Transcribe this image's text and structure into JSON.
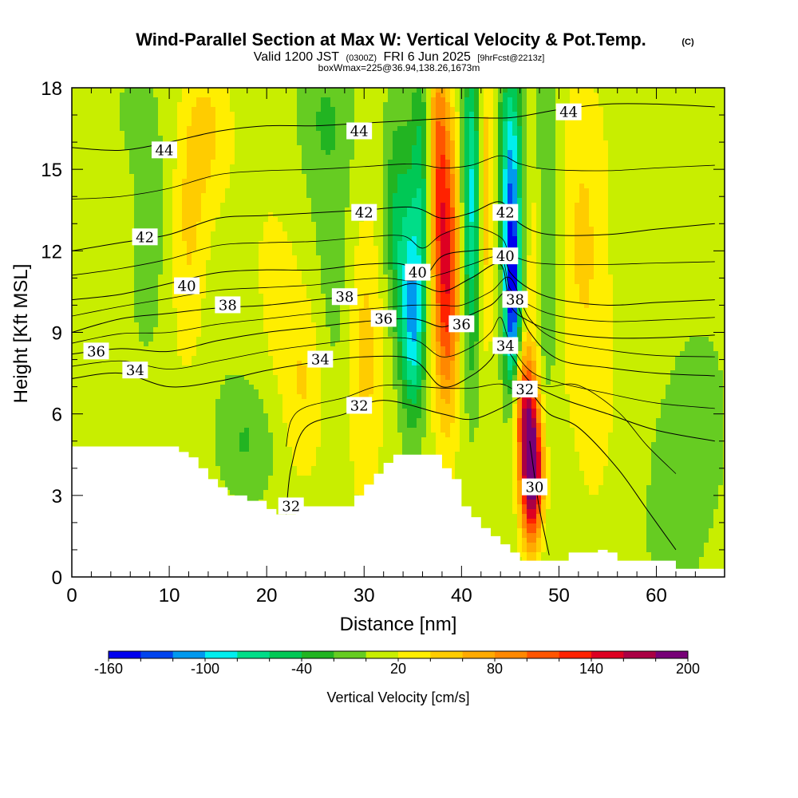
{
  "title": {
    "main": "Wind-Parallel Section at Max W: Vertical Velocity & Pot.Temp.",
    "copyright": "(C)",
    "valid_prefix": "Valid 1200 JST",
    "valid_zulu": "(0300Z)",
    "valid_date": "FRI 6 Jun 2025",
    "forecast": "[9hrFcst@2213z]",
    "boxwmax": "boxWmax=225@36.94,138.26,1673m"
  },
  "chart_data": {
    "type": "heatmap",
    "xlabel": "Distance [nm]",
    "ylabel": "Height [Kft MSL]",
    "xlim": [
      0,
      67
    ],
    "ylim": [
      0,
      18
    ],
    "x_ticks": [
      "0",
      "10",
      "20",
      "30",
      "40",
      "50",
      "60"
    ],
    "x_tick_values": [
      0,
      10,
      20,
      30,
      40,
      50,
      60
    ],
    "y_ticks": [
      "0",
      "3",
      "6",
      "9",
      "12",
      "15",
      "18"
    ],
    "y_tick_values": [
      0,
      3,
      6,
      9,
      12,
      15,
      18
    ],
    "colorbar": {
      "title": "Vertical Velocity [cm/s]",
      "labels": [
        "-160",
        "-100",
        "-40",
        "20",
        "80",
        "140",
        "200"
      ],
      "label_values": [
        -160,
        -100,
        -40,
        20,
        80,
        140,
        200
      ],
      "levels": [
        -160,
        -140,
        -120,
        -100,
        -80,
        -60,
        -40,
        -20,
        0,
        20,
        40,
        60,
        80,
        100,
        120,
        140,
        160,
        180,
        200
      ],
      "colors": [
        "#0000ee",
        "#0044ee",
        "#0099ee",
        "#00eeee",
        "#00dd88",
        "#00c855",
        "#22b422",
        "#66cc22",
        "#c8ee00",
        "#ffee00",
        "#ffcc00",
        "#ffaa00",
        "#ff8800",
        "#ff5500",
        "#ff2200",
        "#dd0022",
        "#aa0044",
        "#770077"
      ]
    },
    "terrain": [
      [
        0,
        4.8
      ],
      [
        2,
        4.8
      ],
      [
        5,
        4.8
      ],
      [
        8,
        4.8
      ],
      [
        10,
        4.8
      ],
      [
        11,
        4.6
      ],
      [
        12,
        4.4
      ],
      [
        13,
        4.0
      ],
      [
        14,
        3.6
      ],
      [
        15,
        3.3
      ],
      [
        16,
        3.0
      ],
      [
        18,
        2.8
      ],
      [
        20,
        2.5
      ],
      [
        21,
        2.3
      ],
      [
        22,
        2.3
      ],
      [
        23,
        2.6
      ],
      [
        25,
        2.6
      ],
      [
        27,
        2.6
      ],
      [
        28,
        2.6
      ],
      [
        29,
        3.0
      ],
      [
        30,
        3.4
      ],
      [
        31,
        3.8
      ],
      [
        32,
        4.2
      ],
      [
        33,
        4.5
      ],
      [
        35,
        4.5
      ],
      [
        37,
        4.5
      ],
      [
        38,
        4.0
      ],
      [
        39,
        3.6
      ],
      [
        40,
        2.6
      ],
      [
        41,
        2.2
      ],
      [
        42,
        1.8
      ],
      [
        43,
        1.5
      ],
      [
        44,
        1.2
      ],
      [
        45,
        0.9
      ],
      [
        46,
        0.6
      ],
      [
        48,
        0.6
      ],
      [
        50,
        0.6
      ],
      [
        51,
        0.9
      ],
      [
        53,
        0.9
      ],
      [
        54,
        1.0
      ],
      [
        55,
        0.9
      ],
      [
        56,
        0.6
      ],
      [
        58,
        0.6
      ],
      [
        61,
        0.6
      ],
      [
        62,
        0.3
      ],
      [
        64,
        0.3
      ],
      [
        67,
        0.3
      ]
    ],
    "w_features": [
      {
        "x": 12,
        "y": 13,
        "sx": 1.3,
        "sy": 3.5,
        "amp": 35
      },
      {
        "x": 14,
        "y": 16.5,
        "sx": 1.5,
        "sy": 2.0,
        "amp": 30
      },
      {
        "x": 8,
        "y": 11,
        "sx": 1.5,
        "sy": 3.0,
        "amp": -15
      },
      {
        "x": 30,
        "y": 8.5,
        "sx": 1.4,
        "sy": 3.5,
        "amp": 45
      },
      {
        "x": 24,
        "y": 7,
        "sx": 1.5,
        "sy": 2.5,
        "amp": 30
      },
      {
        "x": 21,
        "y": 12,
        "sx": 2.5,
        "sy": 4.0,
        "amp": 15
      },
      {
        "x": 27,
        "y": 12,
        "sx": 2.0,
        "sy": 4.0,
        "amp": -20
      },
      {
        "x": 26,
        "y": 17,
        "sx": 2.0,
        "sy": 2.0,
        "amp": -25
      },
      {
        "x": 35,
        "y": 9.5,
        "sx": 0.9,
        "sy": 2.5,
        "amp": -110
      },
      {
        "x": 36,
        "y": 15,
        "sx": 0.8,
        "sy": 3.0,
        "amp": -60
      },
      {
        "x": 33.5,
        "y": 13,
        "sx": 1.0,
        "sy": 3.0,
        "amp": -50
      },
      {
        "x": 38.5,
        "y": 11,
        "sx": 1.0,
        "sy": 3.5,
        "amp": 130
      },
      {
        "x": 37.5,
        "y": 16,
        "sx": 0.8,
        "sy": 3.0,
        "amp": 80
      },
      {
        "x": 41,
        "y": 14,
        "sx": 0.7,
        "sy": 4.0,
        "amp": -100
      },
      {
        "x": 42.5,
        "y": 14,
        "sx": 0.6,
        "sy": 4.0,
        "amp": 50
      },
      {
        "x": 45.2,
        "y": 10.5,
        "sx": 0.6,
        "sy": 2.5,
        "amp": -165
      },
      {
        "x": 45,
        "y": 15.5,
        "sx": 0.8,
        "sy": 2.5,
        "amp": -90
      },
      {
        "x": 47.2,
        "y": 3.8,
        "sx": 0.8,
        "sy": 1.8,
        "amp": 210
      },
      {
        "x": 46.5,
        "y": 6.5,
        "sx": 0.8,
        "sy": 1.5,
        "amp": 100
      },
      {
        "x": 48.5,
        "y": 12,
        "sx": 1.0,
        "sy": 5.0,
        "amp": -35
      },
      {
        "x": 47.5,
        "y": 12,
        "sx": 0.6,
        "sy": 3.0,
        "amp": 40
      },
      {
        "x": 52,
        "y": 13,
        "sx": 1.5,
        "sy": 4.0,
        "amp": 20
      },
      {
        "x": 54,
        "y": 9,
        "sx": 2.5,
        "sy": 4.5,
        "amp": 25
      },
      {
        "x": 57,
        "y": 13,
        "sx": 1.5,
        "sy": 4.5,
        "amp": -20
      },
      {
        "x": 63,
        "y": 4,
        "sx": 2.5,
        "sy": 3.0,
        "amp": -25
      },
      {
        "x": 60,
        "y": 16,
        "sx": 3.5,
        "sy": 2.5,
        "amp": 15
      },
      {
        "x": 5,
        "y": 17,
        "sx": 3.0,
        "sy": 2.0,
        "amp": -10
      },
      {
        "x": 18,
        "y": 5,
        "sx": 2.0,
        "sy": 1.5,
        "amp": -30
      }
    ],
    "theta_contours": [
      {
        "label": "30",
        "points": [
          [
            49,
            0.8
          ],
          [
            48,
            2.5
          ],
          [
            47.5,
            3.7
          ],
          [
            47,
            5
          ]
        ]
      },
      {
        "label": "32",
        "points": [
          [
            22,
            2.3
          ],
          [
            22.5,
            4
          ],
          [
            24,
            5.5
          ],
          [
            28,
            6.0
          ],
          [
            32,
            6.5
          ],
          [
            38,
            6.0
          ],
          [
            41,
            5.8
          ],
          [
            44,
            6.2
          ],
          [
            46,
            6.6
          ],
          [
            47,
            6.8
          ],
          [
            49,
            6.0
          ],
          [
            52,
            5.5
          ],
          [
            56,
            4.0
          ],
          [
            59,
            2.5
          ],
          [
            62,
            1.0
          ]
        ]
      },
      {
        "label": "34",
        "points": [
          [
            0,
            7.3
          ],
          [
            5,
            7.5
          ],
          [
            10,
            7.0
          ],
          [
            15,
            7.2
          ],
          [
            20,
            7.6
          ],
          [
            25,
            7.9
          ],
          [
            30,
            8.1
          ],
          [
            35,
            8.0
          ],
          [
            38,
            7.0
          ],
          [
            41,
            7.4
          ],
          [
            43,
            8.0
          ],
          [
            44,
            8.6
          ],
          [
            45,
            8.2
          ],
          [
            47,
            7.2
          ],
          [
            50,
            6.6
          ],
          [
            55,
            6.0
          ],
          [
            60,
            5.4
          ],
          [
            66,
            5.0
          ]
        ]
      },
      {
        "label": "36",
        "points": [
          [
            0,
            8.2
          ],
          [
            5,
            8.4
          ],
          [
            10,
            8.3
          ],
          [
            15,
            8.7
          ],
          [
            20,
            9.0
          ],
          [
            25,
            9.2
          ],
          [
            30,
            9.4
          ],
          [
            35,
            9.5
          ],
          [
            38,
            9.2
          ],
          [
            40,
            9.5
          ],
          [
            43,
            10.0
          ],
          [
            45,
            10.5
          ],
          [
            47,
            9.0
          ],
          [
            50,
            8.0
          ],
          [
            55,
            7.7
          ],
          [
            60,
            7.5
          ],
          [
            66,
            7.4
          ]
        ]
      },
      {
        "label": "38",
        "points": [
          [
            0,
            9.0
          ],
          [
            5,
            9.5
          ],
          [
            10,
            9.7
          ],
          [
            15,
            9.9
          ],
          [
            20,
            10.0
          ],
          [
            25,
            10.2
          ],
          [
            28,
            10.3
          ],
          [
            32,
            10.5
          ],
          [
            35,
            10.8
          ],
          [
            38,
            10.5
          ],
          [
            41,
            11.0
          ],
          [
            44,
            11.5
          ],
          [
            45,
            10.0
          ],
          [
            47,
            9.4
          ],
          [
            50,
            9.0
          ],
          [
            55,
            8.8
          ],
          [
            60,
            8.8
          ],
          [
            66,
            8.9
          ]
        ]
      },
      {
        "label": "40",
        "points": [
          [
            0,
            10.2
          ],
          [
            5,
            10.4
          ],
          [
            10,
            10.8
          ],
          [
            15,
            11.2
          ],
          [
            20,
            11.3
          ],
          [
            25,
            11.3
          ],
          [
            30,
            11.5
          ],
          [
            34,
            11.5
          ],
          [
            36,
            11.0
          ],
          [
            38,
            11.8
          ],
          [
            41,
            12.0
          ],
          [
            44,
            12.0
          ],
          [
            45,
            11.2
          ],
          [
            47,
            10.6
          ],
          [
            50,
            10.2
          ],
          [
            55,
            10.0
          ],
          [
            60,
            10.1
          ],
          [
            66,
            10.2
          ]
        ]
      },
      {
        "label": "42",
        "points": [
          [
            0,
            12.0
          ],
          [
            5,
            12.3
          ],
          [
            10,
            12.6
          ],
          [
            15,
            13.2
          ],
          [
            20,
            13.3
          ],
          [
            25,
            13.4
          ],
          [
            30,
            13.5
          ],
          [
            35,
            13.6
          ],
          [
            38,
            13.2
          ],
          [
            41,
            13.4
          ],
          [
            44,
            13.8
          ],
          [
            46,
            13.0
          ],
          [
            49,
            12.6
          ],
          [
            55,
            12.6
          ],
          [
            60,
            12.8
          ],
          [
            66,
            13.0
          ]
        ]
      },
      {
        "label": "44",
        "points": [
          [
            0,
            15.8
          ],
          [
            5,
            15.7
          ],
          [
            10,
            16.0
          ],
          [
            15,
            16.4
          ],
          [
            20,
            16.6
          ],
          [
            25,
            16.6
          ],
          [
            30,
            16.7
          ],
          [
            35,
            16.8
          ],
          [
            40,
            16.9
          ],
          [
            45,
            16.9
          ],
          [
            50,
            17.2
          ],
          [
            55,
            17.4
          ],
          [
            60,
            17.4
          ],
          [
            66,
            17.3
          ]
        ]
      }
    ],
    "theta_labels": [
      {
        "text": "44",
        "x": 9.5,
        "y": 15.7
      },
      {
        "text": "44",
        "x": 29.5,
        "y": 16.4
      },
      {
        "text": "44",
        "x": 51,
        "y": 17.1
      },
      {
        "text": "42",
        "x": 7.5,
        "y": 12.5
      },
      {
        "text": "42",
        "x": 30,
        "y": 13.4
      },
      {
        "text": "42",
        "x": 44.5,
        "y": 13.4
      },
      {
        "text": "40",
        "x": 11.8,
        "y": 10.7
      },
      {
        "text": "40",
        "x": 35.5,
        "y": 11.2
      },
      {
        "text": "40",
        "x": 44.5,
        "y": 11.8
      },
      {
        "text": "38",
        "x": 16,
        "y": 10.0
      },
      {
        "text": "38",
        "x": 28,
        "y": 10.3
      },
      {
        "text": "38",
        "x": 45.5,
        "y": 10.2
      },
      {
        "text": "36",
        "x": 2.5,
        "y": 8.3
      },
      {
        "text": "36",
        "x": 32,
        "y": 9.5
      },
      {
        "text": "36",
        "x": 40,
        "y": 9.3
      },
      {
        "text": "34",
        "x": 6.5,
        "y": 7.6
      },
      {
        "text": "34",
        "x": 25.5,
        "y": 8.0
      },
      {
        "text": "34",
        "x": 44.5,
        "y": 8.5
      },
      {
        "text": "32",
        "x": 29.5,
        "y": 6.3
      },
      {
        "text": "32",
        "x": 46.5,
        "y": 6.9
      },
      {
        "text": "32",
        "x": 22.5,
        "y": 2.6
      },
      {
        "text": "30",
        "x": 47.5,
        "y": 3.3
      }
    ]
  }
}
